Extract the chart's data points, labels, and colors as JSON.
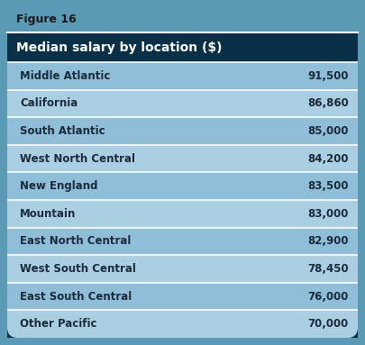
{
  "figure_label": "Figure 16",
  "header_text": "Median salary by location ($)",
  "rows": [
    {
      "location": "Middle Atlantic",
      "value": "91,500"
    },
    {
      "location": "California",
      "value": "86,860"
    },
    {
      "location": "South Atlantic",
      "value": "85,000"
    },
    {
      "location": "West North Central",
      "value": "84,200"
    },
    {
      "location": "New England",
      "value": "83,500"
    },
    {
      "location": "Mountain",
      "value": "83,000"
    },
    {
      "location": "East North Central",
      "value": "82,900"
    },
    {
      "location": "West South Central",
      "value": "78,450"
    },
    {
      "location": "East South Central",
      "value": "76,000"
    },
    {
      "location": "Other Pacific",
      "value": "70,000"
    }
  ],
  "outer_bg": "#5b9ab5",
  "fig_label_bg": "#5b9ab5",
  "header_bg": "#0a3047",
  "header_text_color": "#ffffff",
  "fig_label_text_color": "#1a1a1a",
  "row_bg_light": "#aacfe3",
  "row_bg_dark": "#8fbfd8",
  "row_divider_color": "#ffffff",
  "row_text_color": "#1a2a3a",
  "fig_width": 4.05,
  "fig_height": 3.83,
  "dpi": 100
}
